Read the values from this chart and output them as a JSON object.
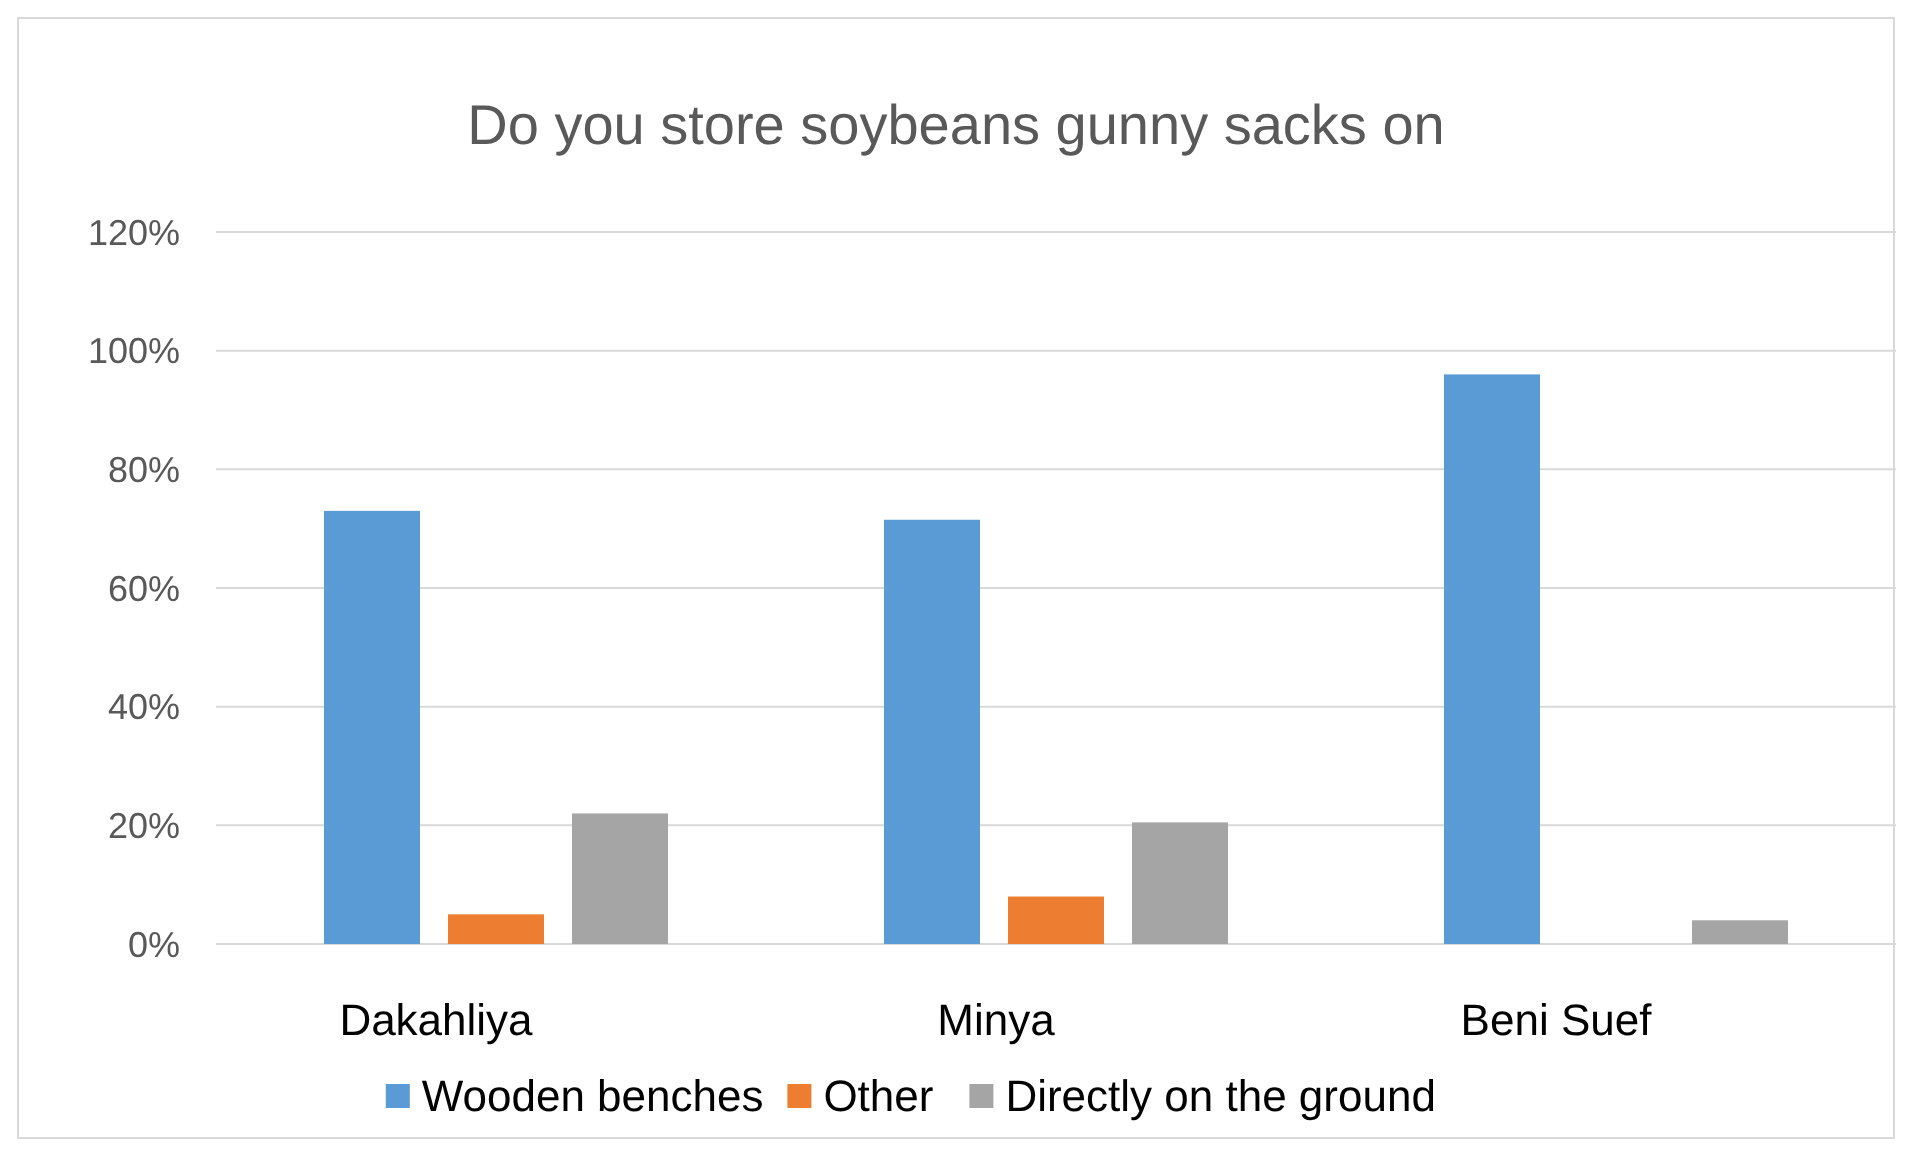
{
  "chart_data": {
    "type": "bar",
    "title": "Do you store soybeans gunny sacks on",
    "categories": [
      "Dakahliya",
      "Minya",
      "Beni Suef"
    ],
    "series": [
      {
        "name": "Wooden benches",
        "color": "#5b9bd5",
        "values": [
          73,
          71.5,
          96
        ]
      },
      {
        "name": "Other",
        "color": "#ed7d31",
        "values": [
          5,
          8,
          0
        ]
      },
      {
        "name": "Directly on the ground",
        "color": "#a5a5a5",
        "values": [
          22,
          20.5,
          4
        ]
      }
    ],
    "ylim": [
      0,
      120
    ],
    "yticks": [
      {
        "value": 0,
        "label": "0%"
      },
      {
        "value": 20,
        "label": "20%"
      },
      {
        "value": 40,
        "label": "40%"
      },
      {
        "value": 60,
        "label": "60%"
      },
      {
        "value": 80,
        "label": "80%"
      },
      {
        "value": 100,
        "label": "100%"
      },
      {
        "value": 120,
        "label": "120%"
      }
    ],
    "grid": "y",
    "legend": "bottom"
  }
}
